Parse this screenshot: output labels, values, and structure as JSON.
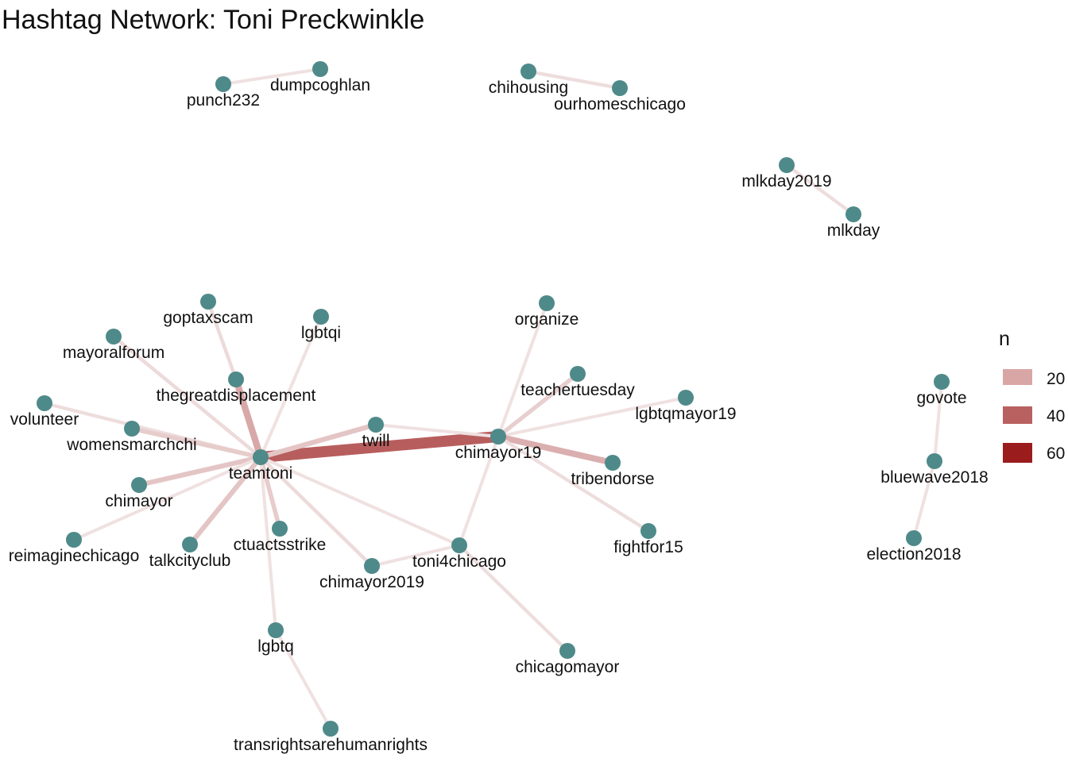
{
  "title": "Hashtag Network: Toni Preckwinkle",
  "colors": {
    "node": "#4e8a89",
    "edge_low": "#f0e1e1",
    "edge_mid": "#b96060",
    "edge_high": "#9b1c1c"
  },
  "legend": {
    "title": "n",
    "items": [
      {
        "label": "20",
        "value": 20,
        "color": "#d9a6a6"
      },
      {
        "label": "40",
        "value": 40,
        "color": "#b96060"
      },
      {
        "label": "60",
        "value": 60,
        "color": "#9b1c1c"
      }
    ]
  },
  "nodes": [
    {
      "id": "punch232",
      "label": "punch232"
    },
    {
      "id": "dumpcoghlan",
      "label": "dumpcoghlan"
    },
    {
      "id": "chihousing",
      "label": "chihousing"
    },
    {
      "id": "ourhomeschicago",
      "label": "ourhomeschicago"
    },
    {
      "id": "mlkday2019",
      "label": "mlkday2019"
    },
    {
      "id": "mlkday",
      "label": "mlkday"
    },
    {
      "id": "goptaxscam",
      "label": "goptaxscam"
    },
    {
      "id": "lgbtqi",
      "label": "lgbtqi"
    },
    {
      "id": "organize",
      "label": "organize"
    },
    {
      "id": "mayoralforum",
      "label": "mayoralforum"
    },
    {
      "id": "thegreatdisplacement",
      "label": "thegreatdisplacement"
    },
    {
      "id": "teachertuesday",
      "label": "teachertuesday"
    },
    {
      "id": "volunteer",
      "label": "volunteer"
    },
    {
      "id": "lgbtqmayor19",
      "label": "lgbtqmayor19"
    },
    {
      "id": "womensmarchchi",
      "label": "womensmarchchi"
    },
    {
      "id": "twill",
      "label": "twill"
    },
    {
      "id": "chimayor19",
      "label": "chimayor19"
    },
    {
      "id": "teamtoni",
      "label": "teamtoni"
    },
    {
      "id": "tribendorse",
      "label": "tribendorse"
    },
    {
      "id": "chimayor",
      "label": "chimayor"
    },
    {
      "id": "ctuactsstrike",
      "label": "ctuactsstrike"
    },
    {
      "id": "fightfor15",
      "label": "fightfor15"
    },
    {
      "id": "reimaginechicago",
      "label": "reimaginechicago"
    },
    {
      "id": "talkcityclub",
      "label": "talkcityclub"
    },
    {
      "id": "toni4chicago",
      "label": "toni4chicago"
    },
    {
      "id": "chimayor2019",
      "label": "chimayor2019"
    },
    {
      "id": "lgbtq",
      "label": "lgbtq"
    },
    {
      "id": "chicagomayor",
      "label": "chicagomayor"
    },
    {
      "id": "transrightsarehumanrights",
      "label": "transrightsarehumanrights"
    },
    {
      "id": "govote",
      "label": "govote"
    },
    {
      "id": "bluewave2018",
      "label": "bluewave2018"
    },
    {
      "id": "election2018",
      "label": "election2018"
    }
  ],
  "edges": [
    {
      "source": "punch232",
      "target": "dumpcoghlan",
      "n": 8
    },
    {
      "source": "chihousing",
      "target": "ourhomeschicago",
      "n": 9
    },
    {
      "source": "mlkday2019",
      "target": "mlkday",
      "n": 9
    },
    {
      "source": "teamtoni",
      "target": "chimayor19",
      "n": 45
    },
    {
      "source": "teamtoni",
      "target": "thegreatdisplacement",
      "n": 24
    },
    {
      "source": "thegreatdisplacement",
      "target": "goptaxscam",
      "n": 10
    },
    {
      "source": "teamtoni",
      "target": "lgbtqi",
      "n": 8
    },
    {
      "source": "teamtoni",
      "target": "mayoralforum",
      "n": 10
    },
    {
      "source": "teamtoni",
      "target": "volunteer",
      "n": 9
    },
    {
      "source": "teamtoni",
      "target": "womensmarchchi",
      "n": 14
    },
    {
      "source": "teamtoni",
      "target": "twill",
      "n": 16
    },
    {
      "source": "twill",
      "target": "chimayor19",
      "n": 8
    },
    {
      "source": "teamtoni",
      "target": "chimayor",
      "n": 16
    },
    {
      "source": "teamtoni",
      "target": "reimaginechicago",
      "n": 8
    },
    {
      "source": "teamtoni",
      "target": "talkcityclub",
      "n": 16
    },
    {
      "source": "teamtoni",
      "target": "ctuactsstrike",
      "n": 14
    },
    {
      "source": "teamtoni",
      "target": "chimayor2019",
      "n": 10
    },
    {
      "source": "teamtoni",
      "target": "toni4chicago",
      "n": 8
    },
    {
      "source": "teamtoni",
      "target": "lgbtq",
      "n": 8
    },
    {
      "source": "lgbtq",
      "target": "transrightsarehumanrights",
      "n": 8
    },
    {
      "source": "chimayor19",
      "target": "organize",
      "n": 8
    },
    {
      "source": "chimayor19",
      "target": "teachertuesday",
      "n": 13
    },
    {
      "source": "chimayor19",
      "target": "lgbtqmayor19",
      "n": 8
    },
    {
      "source": "chimayor19",
      "target": "tribendorse",
      "n": 22
    },
    {
      "source": "chimayor19",
      "target": "fightfor15",
      "n": 9
    },
    {
      "source": "chimayor19",
      "target": "toni4chicago",
      "n": 8
    },
    {
      "source": "toni4chicago",
      "target": "chimayor2019",
      "n": 8
    },
    {
      "source": "toni4chicago",
      "target": "chicagomayor",
      "n": 9
    },
    {
      "source": "govote",
      "target": "bluewave2018",
      "n": 8
    },
    {
      "source": "bluewave2018",
      "target": "election2018",
      "n": 8
    }
  ]
}
